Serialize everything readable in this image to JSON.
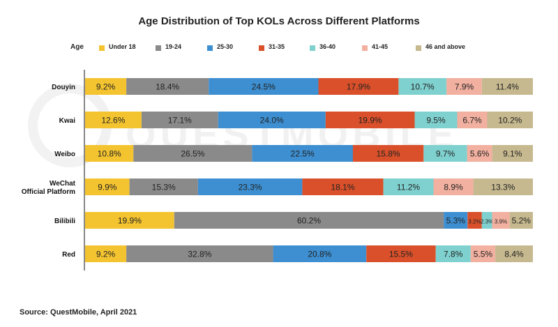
{
  "chart_data": {
    "type": "bar",
    "orientation": "horizontal",
    "stacked": true,
    "title": "Age Distribution of Top KOLs Across Different Platforms",
    "legend_title": "Age",
    "legend_position": "top",
    "grid": false,
    "unit": "%",
    "categories": [
      "Douyin",
      "Kwai",
      "Weibo",
      "WeChat Official Platform",
      "Bilibili",
      "Red"
    ],
    "series": [
      {
        "name": "Under 18",
        "color": "#f4c430",
        "values": [
          9.2,
          12.6,
          10.8,
          9.9,
          19.9,
          9.2
        ]
      },
      {
        "name": "19-24",
        "color": "#8a8a8a",
        "values": [
          18.4,
          17.1,
          26.5,
          15.3,
          60.2,
          32.8
        ]
      },
      {
        "name": "25-30",
        "color": "#3d8fd1",
        "values": [
          24.5,
          24.0,
          22.5,
          23.3,
          5.3,
          20.8
        ]
      },
      {
        "name": "31-35",
        "color": "#d9502a",
        "values": [
          17.9,
          19.9,
          15.8,
          18.1,
          3.2,
          15.5
        ]
      },
      {
        "name": "36-40",
        "color": "#7fd1cf",
        "values": [
          10.7,
          9.5,
          9.7,
          11.2,
          2.3,
          7.8
        ]
      },
      {
        "name": "41-45",
        "color": "#f2b0a0",
        "values": [
          7.9,
          6.7,
          5.6,
          8.9,
          3.9,
          5.5
        ]
      },
      {
        "name": "46 and above",
        "color": "#c6b98f",
        "values": [
          11.4,
          10.2,
          9.1,
          13.3,
          5.2,
          8.4
        ]
      }
    ]
  },
  "source": "Source: QuestMobile, April 2021",
  "watermark": "QUESTMOBILE"
}
